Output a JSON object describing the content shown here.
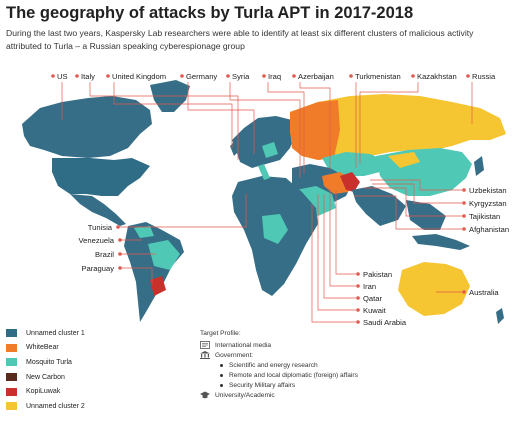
{
  "title": "The geography of attacks by Turla APT in 2017-2018",
  "subtitle": "During the last two years, Kaspersky Lab researchers were able to identify at least six different clusters of malicious activity attributed to Turla – a Russian speaking cyberespionage group",
  "colors": {
    "base": "#356e86",
    "unnamed_cluster_1": "#2f6d86",
    "whitebear": "#f07c2a",
    "mosquito_turla": "#4fc9b6",
    "new_carbon": "#5a2a1c",
    "kopiluwak": "#c9302c",
    "unnamed_cluster_2": "#f6c532",
    "label_line": "#e05a4f"
  },
  "top_labels": [
    "US",
    "Italy",
    "United Kingdom",
    "Germany",
    "Syria",
    "Iraq",
    "Azerbaijan",
    "Turkmenistan",
    "Kazakhstan",
    "Russia"
  ],
  "left_labels": [
    "Tunisia",
    "Venezuela",
    "Brazil",
    "Paraguay"
  ],
  "right_labels": [
    "Uzbekistan",
    "Kyrgyzstan",
    "Tajikistan",
    "Afghanistan"
  ],
  "bottom_labels": [
    "Pakistan",
    "Iran",
    "Qatar",
    "Kuwait",
    "Saudi Arabia"
  ],
  "australia_label": "Australia",
  "legend": [
    {
      "name": "swatch-unnamed-cluster-1",
      "label": "Unnamed cluster 1",
      "color": "#2f6d86"
    },
    {
      "name": "swatch-whitebear",
      "label": "WhiteBear",
      "color": "#f07c2a"
    },
    {
      "name": "swatch-mosquito-turla",
      "label": "Mosquito Turla",
      "color": "#4fc9b6"
    },
    {
      "name": "swatch-new-carbon",
      "label": "New Carbon",
      "color": "#5a2a1c"
    },
    {
      "name": "swatch-kopiluwak",
      "label": "KopiLuwak",
      "color": "#c9302c"
    },
    {
      "name": "swatch-unnamed-cluster-2",
      "label": "Unnamed cluster 2",
      "color": "#f6c532"
    }
  ],
  "target_profile": {
    "heading": "Target Profile:",
    "international_media": "International media",
    "government": "Government:",
    "government_items": [
      "Scientific and energy research",
      "Remote and local diplomatic (foreign) affairs",
      "Security Military affairs"
    ],
    "university": "University/Academic"
  }
}
